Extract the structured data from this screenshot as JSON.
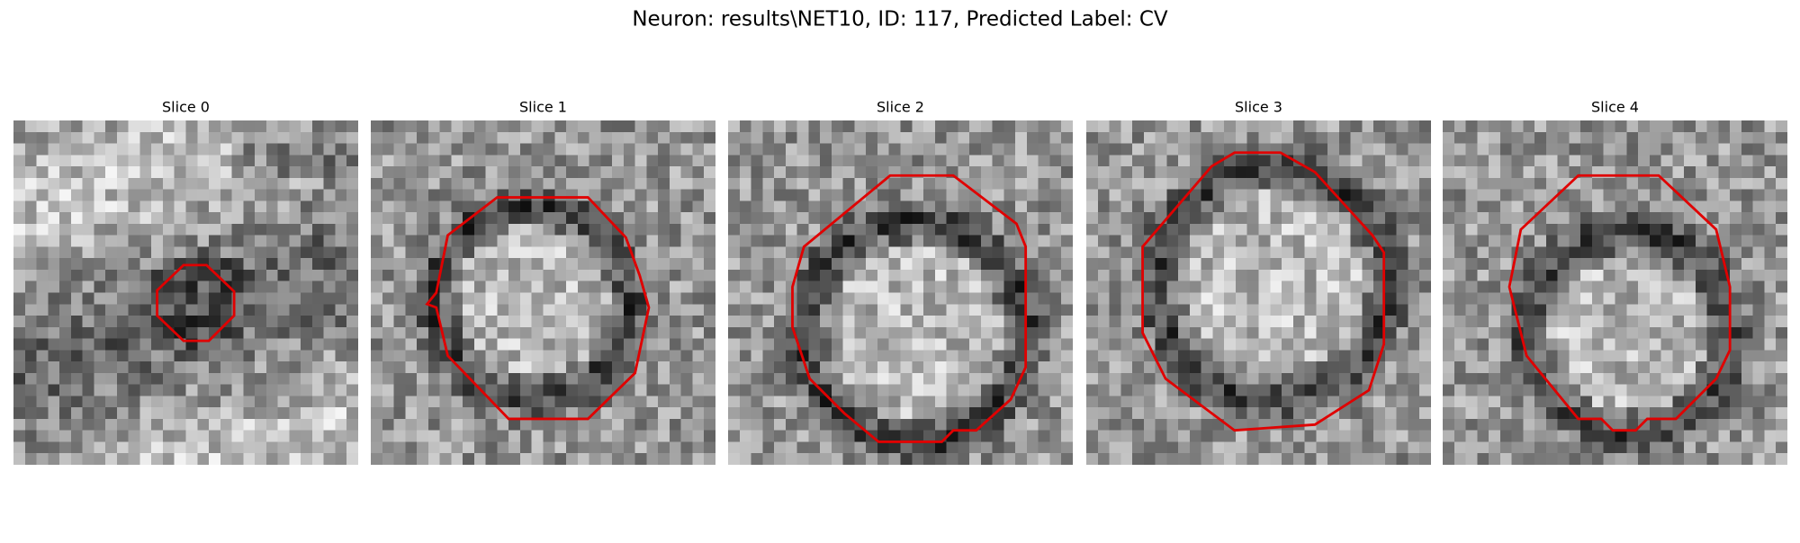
{
  "title": "Neuron: results\\NET10, ID: 117, Predicted Label: CV",
  "panels": [
    {
      "title": "Slice 0"
    },
    {
      "title": "Slice 1"
    },
    {
      "title": "Slice 2"
    },
    {
      "title": "Slice 3"
    },
    {
      "title": "Slice 4"
    }
  ]
}
